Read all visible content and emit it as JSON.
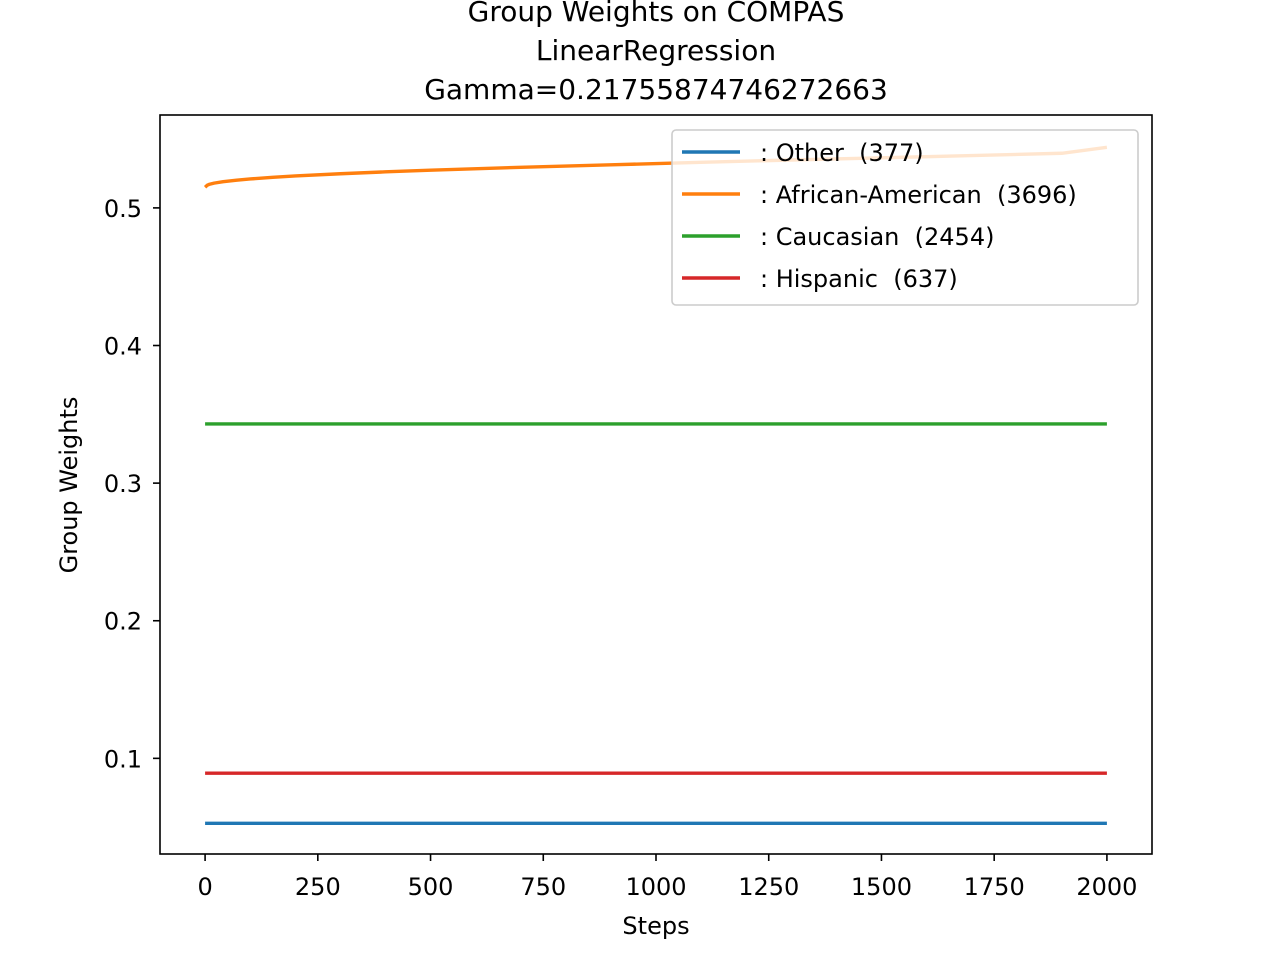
{
  "chart_data": {
    "type": "line",
    "title_lines": [
      "Group Weights on COMPAS",
      "LinearRegression",
      "Gamma=0.21755874746272663"
    ],
    "xlabel": "Steps",
    "ylabel": "Group Weights",
    "xlim": [
      -100,
      2100
    ],
    "ylim": [
      0.0305,
      0.5675
    ],
    "xticks": [
      0,
      250,
      500,
      750,
      1000,
      1250,
      1500,
      1750,
      2000
    ],
    "yticks": [
      0.1,
      0.2,
      0.3,
      0.4,
      0.5
    ],
    "grid": false,
    "legend_position": "top-right",
    "series": [
      {
        "name": ": Other  (377)",
        "color": "#1f77b4",
        "x": [
          0,
          2000
        ],
        "y": [
          0.0528,
          0.0528
        ]
      },
      {
        "name": ": African-American  (3696)",
        "color": "#ff7f0e",
        "x": [
          0,
          5,
          10,
          20,
          40,
          70,
          100,
          150,
          200,
          300,
          400,
          500,
          700,
          900,
          1100,
          1300,
          1500,
          1700,
          1900,
          2000
        ],
        "y": [
          0.515,
          0.5165,
          0.5172,
          0.518,
          0.519,
          0.5201,
          0.521,
          0.5222,
          0.5232,
          0.5248,
          0.5262,
          0.5274,
          0.5295,
          0.5313,
          0.5331,
          0.5348,
          0.5364,
          0.538,
          0.5397,
          0.544
        ]
      },
      {
        "name": ": Caucasian  (2454)",
        "color": "#2ca02c",
        "x": [
          0,
          2000
        ],
        "y": [
          0.343,
          0.343
        ]
      },
      {
        "name": ": Hispanic  (637)",
        "color": "#d62728",
        "x": [
          0,
          2000
        ],
        "y": [
          0.0892,
          0.0892
        ]
      }
    ]
  }
}
